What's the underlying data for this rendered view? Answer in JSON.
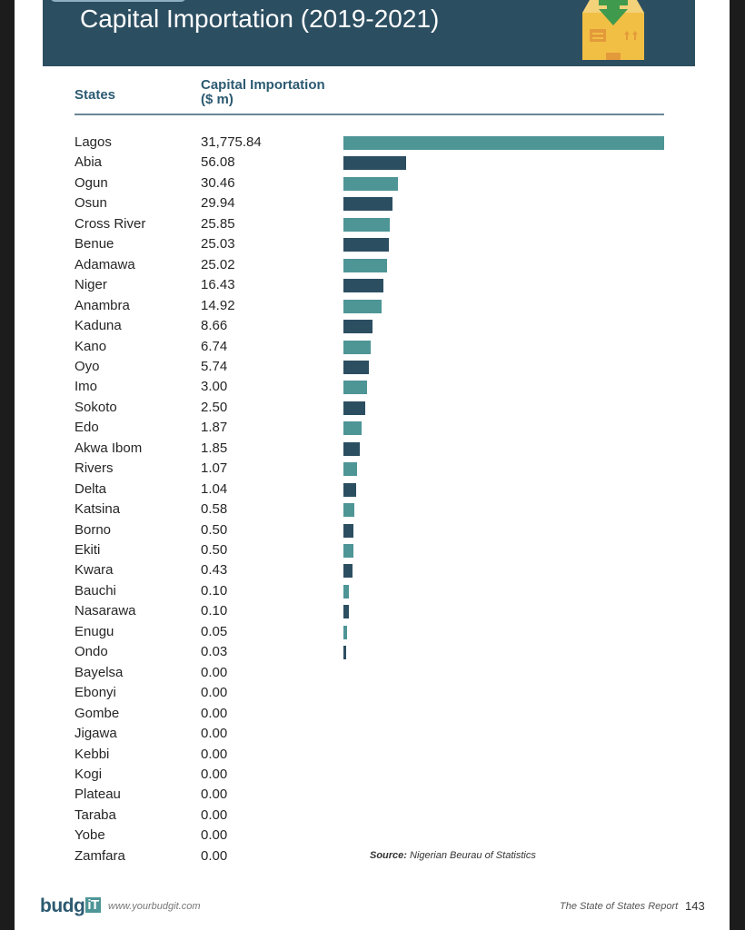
{
  "header": {
    "title": "Capital Importation (2019-2021)",
    "icon": "import-box-icon"
  },
  "table": {
    "col_states": "States",
    "col_value_line1": "Capital Importation",
    "col_value_line2": "($ m)"
  },
  "colors": {
    "banner": "#2c4e61",
    "bar_teal": "#4e9596",
    "bar_dark": "#2c4e61",
    "header_text": "#2c5a72"
  },
  "chart_data": {
    "type": "bar",
    "orientation": "horizontal",
    "title": "Capital Importation (2019-2021)",
    "xlabel": "Capital Importation ($ m)",
    "ylabel": "States",
    "scale_note": "bar lengths not linear to values",
    "categories": [
      "Lagos",
      "Abia",
      "Ogun",
      "Osun",
      "Cross River",
      "Benue",
      "Adamawa",
      "Niger",
      "Anambra",
      "Kaduna",
      "Kano",
      "Oyo",
      "Imo",
      "Sokoto",
      "Edo",
      "Akwa Ibom",
      "Rivers",
      "Delta",
      "Katsina",
      "Borno",
      "Ekiti",
      "Kwara",
      "Bauchi",
      "Nasarawa",
      "Enugu",
      "Ondo",
      "Bayelsa",
      "Ebonyi",
      "Gombe",
      "Jigawa",
      "Kebbi",
      "Kogi",
      "Plateau",
      "Taraba",
      "Yobe",
      "Zamfara"
    ],
    "values": [
      31775.84,
      56.08,
      30.46,
      29.94,
      25.85,
      25.03,
      25.02,
      16.43,
      14.92,
      8.66,
      6.74,
      5.74,
      3.0,
      2.5,
      1.87,
      1.85,
      1.07,
      1.04,
      0.58,
      0.5,
      0.5,
      0.43,
      0.1,
      0.1,
      0.05,
      0.03,
      0,
      0,
      0,
      0,
      0,
      0,
      0,
      0,
      0,
      0
    ],
    "value_labels": [
      "31,775.84",
      "56.08",
      "30.46",
      "29.94",
      "25.85",
      "25.03",
      "25.02",
      "16.43",
      "14.92",
      "8.66",
      "6.74",
      "5.74",
      "3.00",
      "2.50",
      "1.87",
      "1.85",
      "1.07",
      "1.04",
      "0.58",
      "0.50",
      "0.50",
      "0.43",
      "0.10",
      "0.10",
      "0.05",
      "0.03",
      "0.00",
      "0.00",
      "0.00",
      "0.00",
      "0.00",
      "0.00",
      "0.00",
      "0.00",
      "0.00",
      "0.00"
    ],
    "bar_relative_lengths": [
      1.0,
      0.195,
      0.17,
      0.153,
      0.144,
      0.142,
      0.136,
      0.125,
      0.119,
      0.091,
      0.085,
      0.079,
      0.074,
      0.068,
      0.057,
      0.051,
      0.042,
      0.04,
      0.034,
      0.031,
      0.031,
      0.028,
      0.017,
      0.017,
      0.011,
      0.006,
      0,
      0,
      0,
      0,
      0,
      0,
      0,
      0,
      0,
      0
    ]
  },
  "source": {
    "label": "Source:",
    "text": " Nigerian Beurau of Statistics"
  },
  "footer": {
    "logo_text": "budg",
    "logo_badge": "iT",
    "url": "www.yourbudgit.com",
    "report": "The State of States Report",
    "page_number": "143"
  }
}
